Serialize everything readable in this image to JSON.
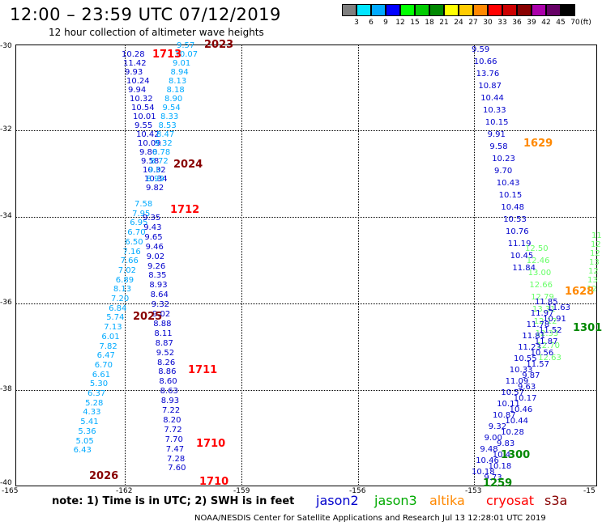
{
  "header": {
    "title": "12:00 – 23:59 UTC 07/12/2019",
    "subtitle": "12 hour collection of altimeter wave heights"
  },
  "legend": {
    "unit_label": "(ft)",
    "bins": [
      {
        "label": "3",
        "color": "#7f7f7f"
      },
      {
        "label": "6",
        "color": "#00e5ff"
      },
      {
        "label": "9",
        "color": "#00aaff"
      },
      {
        "label": "12",
        "color": "#0000ff"
      },
      {
        "label": "15",
        "color": "#00ff00"
      },
      {
        "label": "18",
        "color": "#00cc00"
      },
      {
        "label": "21",
        "color": "#008800"
      },
      {
        "label": "24",
        "color": "#ffff00"
      },
      {
        "label": "27",
        "color": "#ffcc00"
      },
      {
        "label": "30",
        "color": "#ff8800"
      },
      {
        "label": "33",
        "color": "#ff0000"
      },
      {
        "label": "36",
        "color": "#cc0000"
      },
      {
        "label": "39",
        "color": "#880000"
      },
      {
        "label": "42",
        "color": "#aa00aa"
      },
      {
        "label": "45",
        "color": "#660066"
      },
      {
        "label": "70",
        "color": "#000000"
      }
    ]
  },
  "axes": {
    "lat_labels": [
      "-30",
      "-32",
      "-34",
      "-36",
      "-38",
      "-40"
    ],
    "lon_labels": [
      "-165",
      "-162",
      "-159",
      "-156",
      "-153",
      "-15"
    ]
  },
  "footer": {
    "note": "note: 1) Time is in UTC; 2) SWH is in feet",
    "satellites": [
      {
        "name": "jason2",
        "color": "#0000cc"
      },
      {
        "name": "jason3",
        "color": "#00aa00"
      },
      {
        "name": "altika",
        "color": "#ff8800"
      },
      {
        "name": "cryosat",
        "color": "#ff0000"
      },
      {
        "name": "s3a",
        "color": "#880000"
      }
    ],
    "credit": "NOAA/NESDIS Center for Satellite Applications and Research    Jul 13 12:28:01 UTC 2019"
  },
  "times": [
    {
      "text": "2023",
      "color": "#880000"
    },
    {
      "text": "1713",
      "color": "#ff0000"
    },
    {
      "text": "2024",
      "color": "#880000"
    },
    {
      "text": "1712",
      "color": "#ff0000"
    },
    {
      "text": "2025",
      "color": "#880000"
    },
    {
      "text": "1711",
      "color": "#ff0000"
    },
    {
      "text": "1710",
      "color": "#ff0000"
    },
    {
      "text": "2026",
      "color": "#880000"
    },
    {
      "text": "1710",
      "color": "#ff0000"
    },
    {
      "text": "1629",
      "color": "#ff8800"
    },
    {
      "text": "1628",
      "color": "#ff8800"
    },
    {
      "text": "1301",
      "color": "#008800"
    },
    {
      "text": "1300",
      "color": "#008800"
    },
    {
      "text": "1259",
      "color": "#008800"
    }
  ],
  "tracks": {
    "t1": {
      "color": "#0000cc",
      "values": [
        "10.28",
        "11.42",
        "9.93",
        "10.24",
        "9.94",
        "10.32",
        "10.54",
        "10.01",
        "9.55",
        "10.42",
        "10.09",
        "9.80",
        "9.58",
        "10.32",
        "10.34",
        "9.82"
      ]
    },
    "t2": {
      "color": "#00aaff",
      "values": [
        "9.57",
        "10.07",
        "9.01",
        "8.94",
        "8.13",
        "8.18",
        "8.90",
        "9.54",
        "8.33",
        "8.53",
        "8.47",
        "9.32",
        "8.78",
        "8.72",
        "9.0",
        "8.99"
      ]
    },
    "t3": {
      "color": "#00aaff",
      "values": [
        "7.58",
        "7.95",
        "6.95",
        "6.70",
        "6.50",
        "7.16",
        "7.66",
        "7.02",
        "6.89",
        "8.13",
        "7.20",
        "6.84",
        "5.74",
        "7.13",
        "6.01",
        "7.82",
        "6.47",
        "6.70",
        "6.61",
        "5.30",
        "6.37",
        "5.28",
        "4.33",
        "5.41",
        "5.36",
        "5.05",
        "6.43"
      ]
    },
    "t4": {
      "color": "#0000cc",
      "values": [
        "9.35",
        "9.43",
        "9.65",
        "9.46",
        "9.02",
        "9.26",
        "8.35",
        "8.93",
        "8.64",
        "9.32",
        "9.02",
        "8.88",
        "8.11",
        "8.87",
        "9.52",
        "8.26",
        "8.86",
        "8.60",
        "8.63",
        "8.93",
        "7.22",
        "8.20",
        "7.72",
        "7.70",
        "7.47",
        "7.28",
        "7.60"
      ]
    },
    "t5": {
      "color": "#0000cc",
      "values": [
        "9.59",
        "10.66",
        "13.76",
        "10.87",
        "10.44",
        "10.33",
        "10.15",
        "9.91",
        "9.58",
        "10.23",
        "9.70",
        "10.43",
        "10.15",
        "10.48",
        "10.53",
        "10.76",
        "11.19",
        "10.45",
        "11.84"
      ]
    },
    "t6": {
      "color": "#66ff66",
      "values": [
        "12.50",
        "12.46",
        "13.00",
        "12.66",
        "12.79",
        "13.31",
        "12.12",
        "12.33",
        "12.70",
        "12.63"
      ]
    },
    "t7": {
      "color": "#0000cc",
      "values": [
        "11.85",
        "11.63",
        "11.97",
        "10.91",
        "11.78",
        "11.52",
        "11.81",
        "11.87",
        "11.23",
        "10.56",
        "10.55",
        "11.57",
        "10.33",
        "9.87",
        "11.09",
        "9.63",
        "10.57",
        "10.17",
        "10.11",
        "10.46",
        "10.87",
        "10.44",
        "9.32",
        "10.28",
        "9.00",
        "9.83",
        "9.48",
        "10.4",
        "10.46",
        "10.18",
        "10.18",
        "9.73"
      ]
    },
    "t8": {
      "color": "#66ff66",
      "values": [
        "11",
        "12",
        "12",
        "13",
        "12",
        "13",
        "12"
      ]
    }
  }
}
